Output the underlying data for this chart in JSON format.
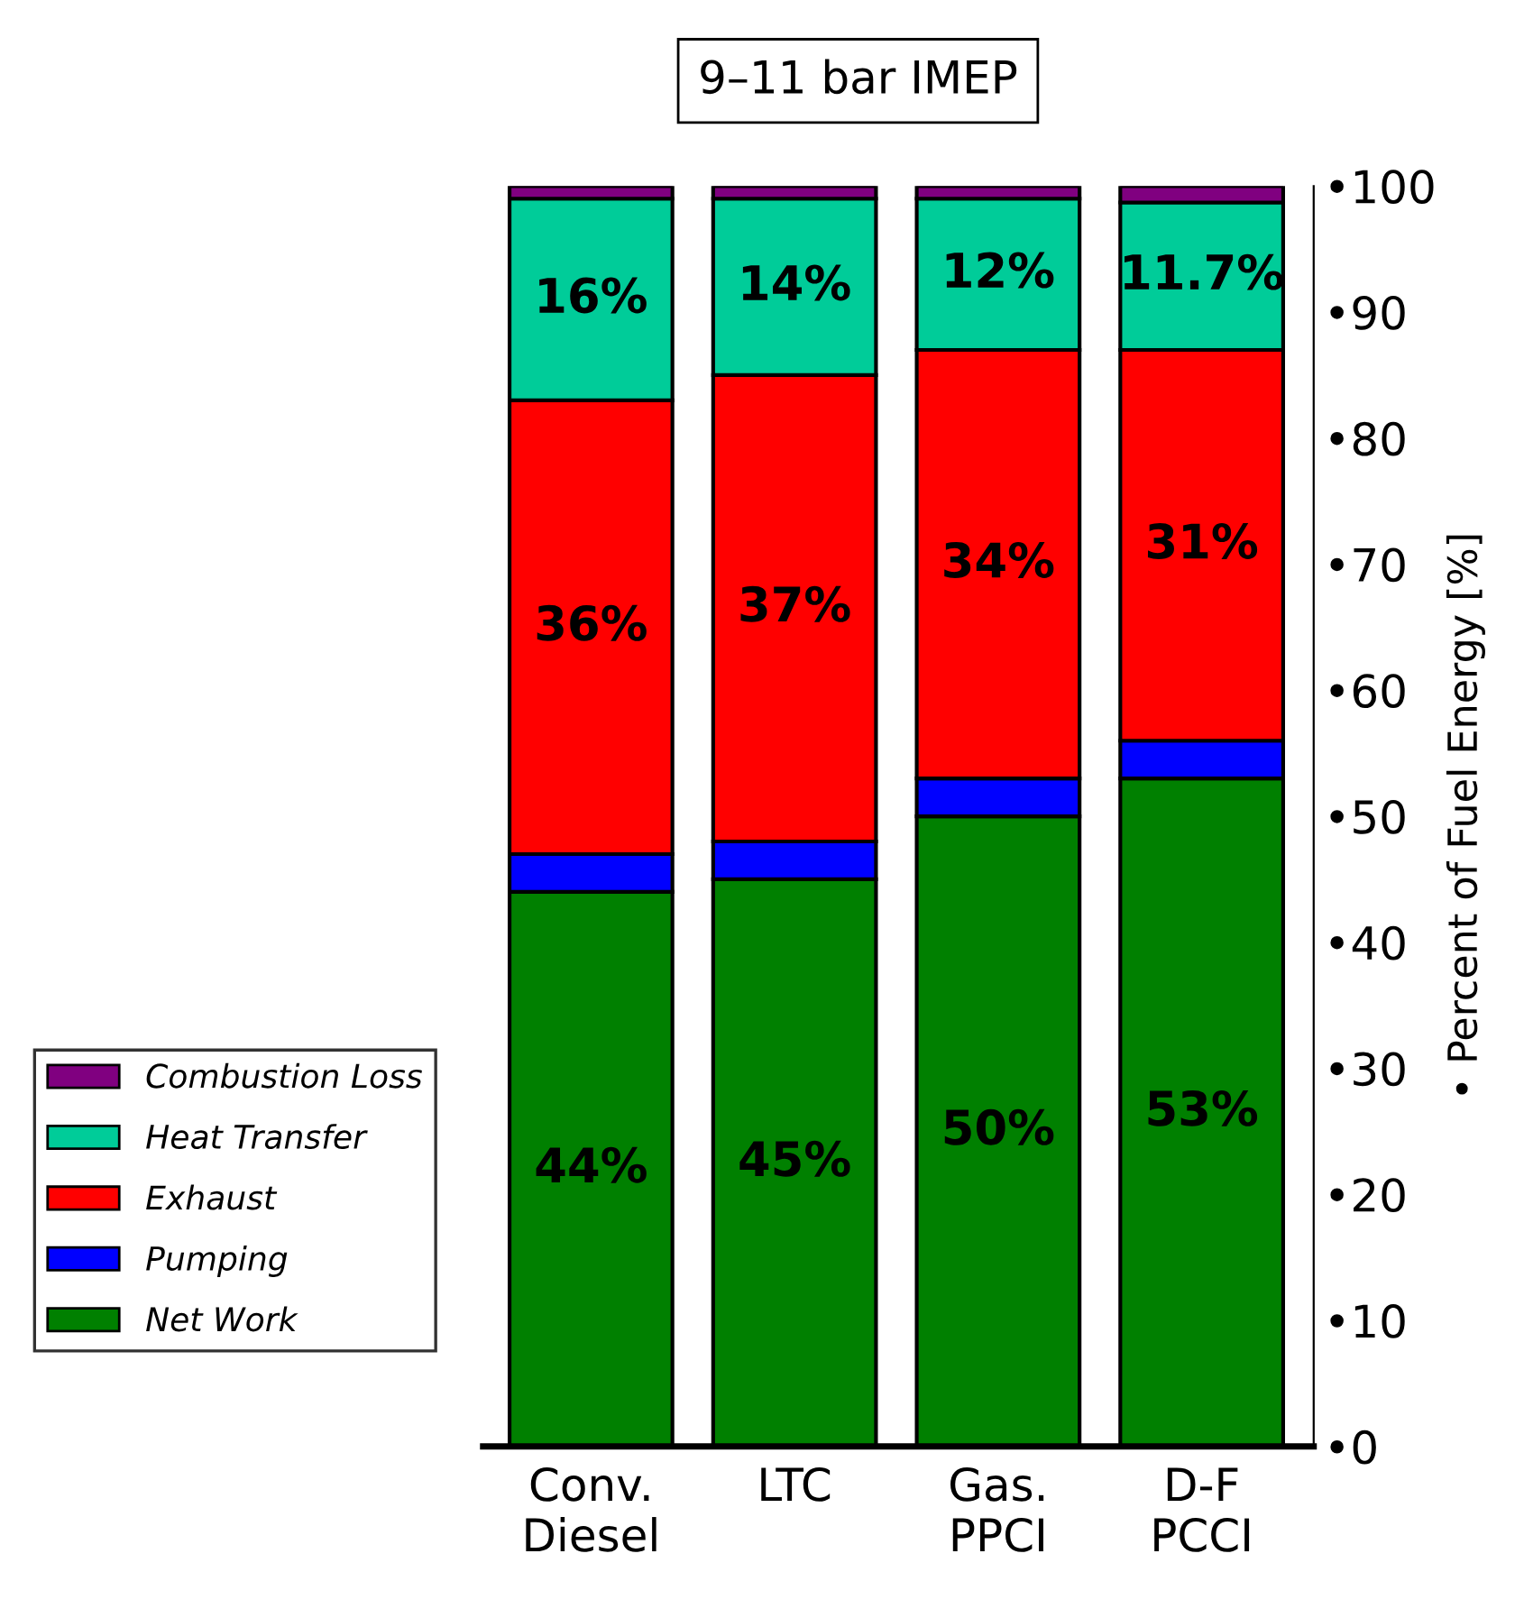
{
  "chart_data": {
    "type": "bar",
    "title": "9–11 bar IMEP",
    "ylabel": "• Percent of Fuel Energy [%]",
    "categories": [
      "Conv.\nDiesel",
      "LTC",
      "Gas.\nPPCI",
      "D-F\nPCCI"
    ],
    "stacked": true,
    "series": [
      {
        "name": "Net Work",
        "color": "#008000",
        "values": [
          44,
          45,
          50,
          53
        ],
        "value_labels": [
          "44%",
          "45%",
          "50%",
          "53%"
        ]
      },
      {
        "name": "Pumping",
        "color": "#0000ff",
        "values": [
          3,
          3,
          3,
          3
        ],
        "value_labels": [
          null,
          null,
          null,
          null
        ]
      },
      {
        "name": "Exhaust",
        "color": "#ff0000",
        "values": [
          36,
          37,
          34,
          31
        ],
        "value_labels": [
          "36%",
          "37%",
          "34%",
          "31%"
        ]
      },
      {
        "name": "Heat Transfer",
        "color": "#00cc99",
        "values": [
          16,
          14,
          12,
          11.7
        ],
        "value_labels": [
          "16%",
          "14%",
          "12%",
          "11.7%"
        ]
      },
      {
        "name": "Combustion Loss",
        "color": "#800080",
        "values": [
          1,
          1,
          1,
          1.3
        ],
        "value_labels": [
          null,
          null,
          null,
          null
        ]
      }
    ],
    "ylim": [
      0,
      100
    ],
    "yticks": [
      {
        "value": 0,
        "label": "•0"
      },
      {
        "value": 10,
        "label": "•10"
      },
      {
        "value": 20,
        "label": "•20"
      },
      {
        "value": 30,
        "label": "•30"
      },
      {
        "value": 40,
        "label": "•40"
      },
      {
        "value": 50,
        "label": "•50"
      },
      {
        "value": 60,
        "label": "•60"
      },
      {
        "value": 70,
        "label": "•70"
      },
      {
        "value": 80,
        "label": "•80"
      },
      {
        "value": 90,
        "label": "•90"
      },
      {
        "value": 100,
        "label": "•100"
      }
    ],
    "grid": false,
    "legend": "bottom left"
  }
}
